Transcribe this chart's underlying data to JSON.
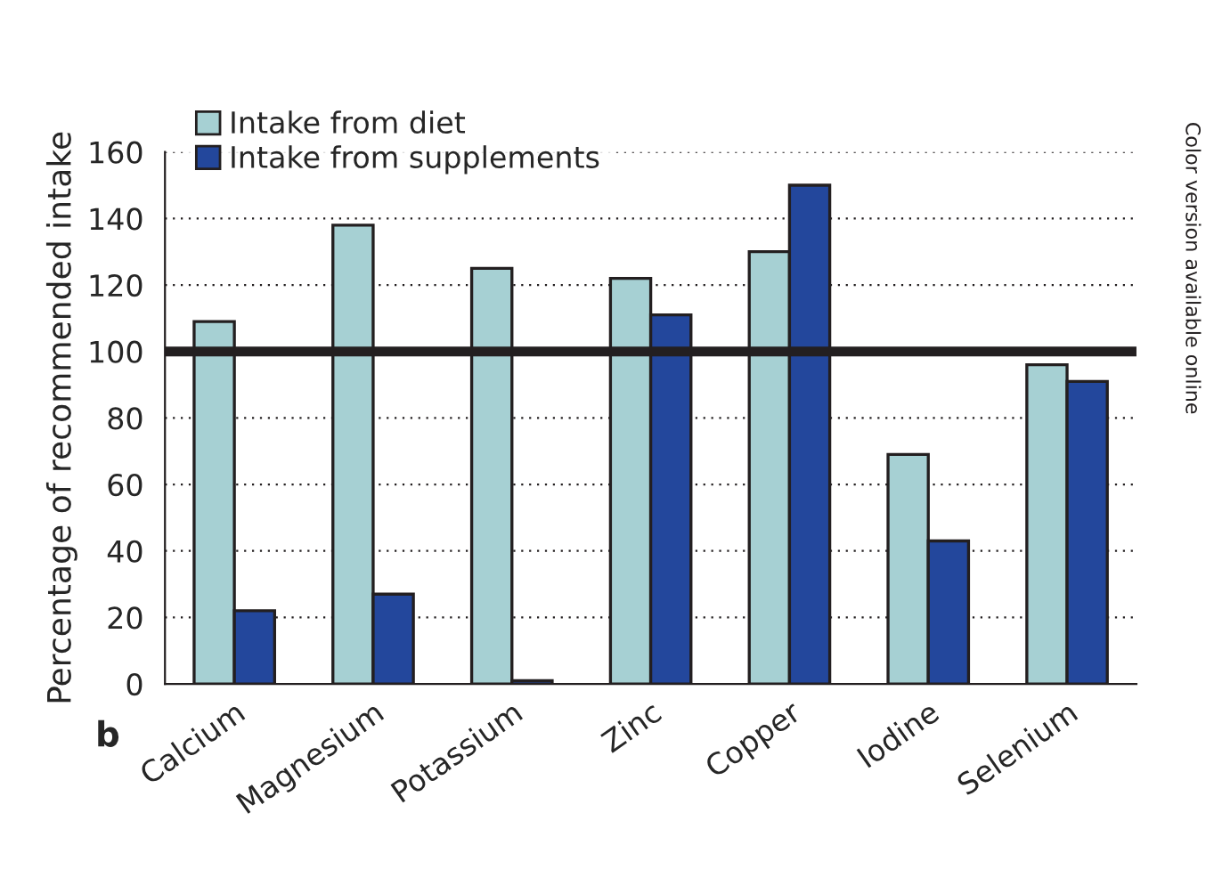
{
  "chart_data": {
    "type": "bar",
    "ylabel": "Percentage of recommended intake",
    "categories": [
      "Calcium",
      "Magnesium",
      "Potassium",
      "Zinc",
      "Copper",
      "Iodine",
      "Selenium"
    ],
    "series": [
      {
        "name": "Intake from diet",
        "color": "#a6d0d3",
        "values": [
          109,
          138,
          125,
          122,
          130,
          69,
          96
        ]
      },
      {
        "name": "Intake from supplements",
        "color": "#23479c",
        "values": [
          22,
          27,
          1,
          111,
          150,
          43,
          91
        ]
      }
    ],
    "ylim": [
      0,
      160
    ],
    "yticks": [
      0,
      20,
      40,
      60,
      80,
      100,
      120,
      140,
      160
    ],
    "ref_lines": [
      {
        "axis": "y",
        "value": 100,
        "color": "#231f20"
      }
    ],
    "grid": "y",
    "legend": "top left",
    "annotations": [
      "b",
      "Color version available online"
    ]
  }
}
